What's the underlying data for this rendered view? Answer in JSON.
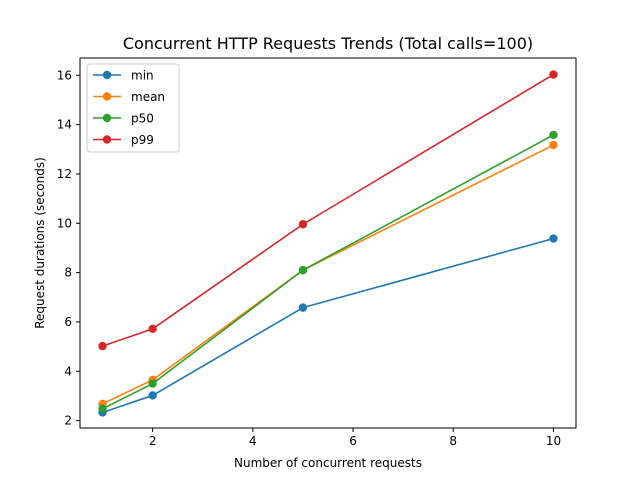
{
  "chart_data": {
    "type": "line",
    "title": "Concurrent HTTP Requests Trends (Total calls=100)",
    "xlabel": "Number of concurrent requests",
    "ylabel": "Request durations (seconds)",
    "x": [
      1,
      2,
      5,
      10
    ],
    "xticks": [
      2,
      4,
      6,
      8,
      10
    ],
    "yticks": [
      2,
      4,
      6,
      8,
      10,
      12,
      14,
      16
    ],
    "xlim": [
      0.55,
      10.45
    ],
    "ylim": [
      1.7,
      16.7
    ],
    "grid": false,
    "legend_position": "top-left",
    "series": [
      {
        "name": "min",
        "color": "#1f77b4",
        "values": [
          2.33,
          3.02,
          6.58,
          9.38
        ]
      },
      {
        "name": "mean",
        "color": "#ff7f0e",
        "values": [
          2.68,
          3.65,
          8.1,
          13.17
        ]
      },
      {
        "name": "p50",
        "color": "#2ca02c",
        "values": [
          2.48,
          3.5,
          8.1,
          13.58
        ]
      },
      {
        "name": "p99",
        "color": "#d62728",
        "values": [
          5.02,
          5.72,
          9.96,
          16.03
        ]
      }
    ]
  }
}
